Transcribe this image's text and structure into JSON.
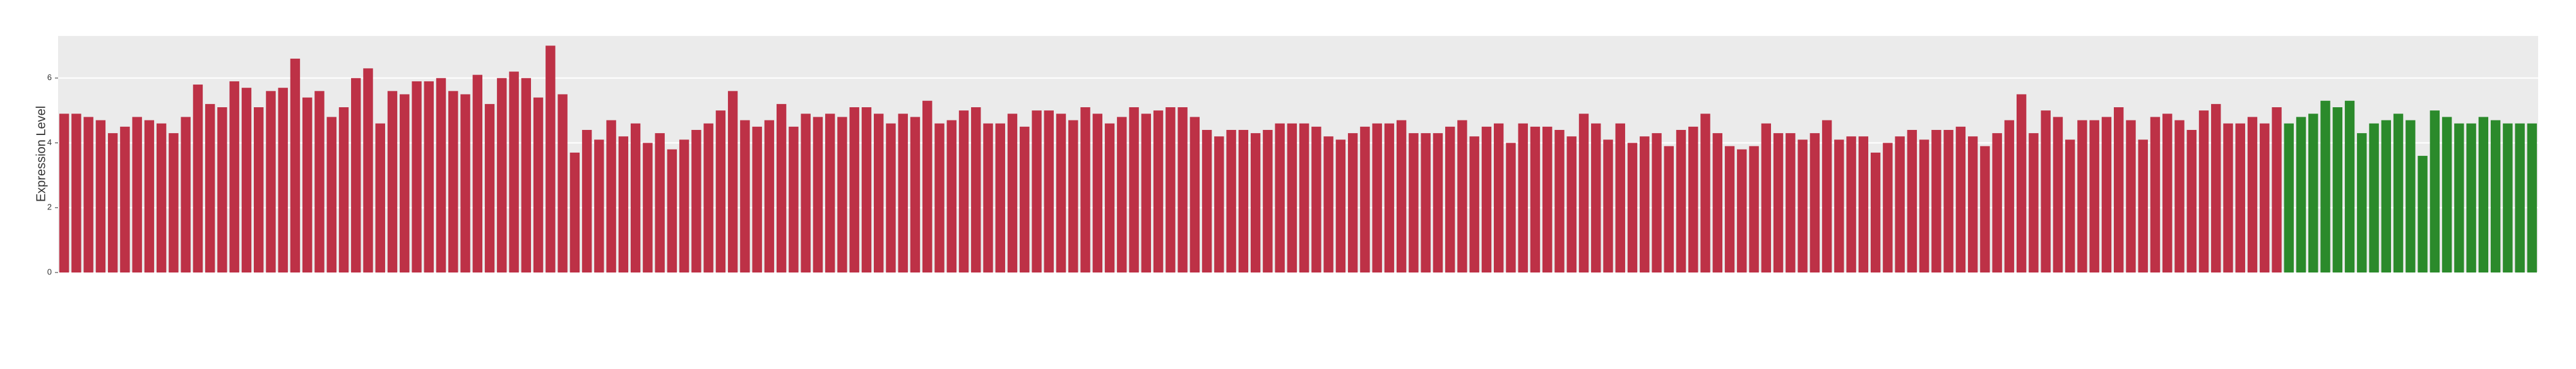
{
  "chart_data": {
    "type": "bar",
    "y_label": "Expression Level",
    "values": [
      4.9,
      4.9,
      4.8,
      4.7,
      4.3,
      4.5,
      4.8,
      4.7,
      4.6,
      4.3,
      4.8,
      5.8,
      5.2,
      5.1,
      5.9,
      5.7,
      5.1,
      5.6,
      5.7,
      6.6,
      5.4,
      5.6,
      4.8,
      5.1,
      6.0,
      6.3,
      4.6,
      5.6,
      5.5,
      5.9,
      5.9,
      6.0,
      5.6,
      5.5,
      6.1,
      5.2,
      6.0,
      6.2,
      6.0,
      5.4,
      7.0,
      5.5,
      3.7,
      4.4,
      4.1,
      4.7,
      4.2,
      4.6,
      4.0,
      4.3,
      3.8,
      4.1,
      4.4,
      4.6,
      5.0,
      5.6,
      4.7,
      4.5,
      4.7,
      5.2,
      4.5,
      4.9,
      4.8,
      4.9,
      4.8,
      5.1,
      5.1,
      4.9,
      4.6,
      4.9,
      4.8,
      5.3,
      4.6,
      4.7,
      5.0,
      5.1,
      4.6,
      4.6,
      4.9,
      4.5,
      5.0,
      5.0,
      4.9,
      4.7,
      5.1,
      4.9,
      4.6,
      4.8,
      5.1,
      4.9,
      5.0,
      5.1,
      5.1,
      4.8,
      4.4,
      4.2,
      4.4,
      4.4,
      4.3,
      4.4,
      4.6,
      4.6,
      4.6,
      4.5,
      4.2,
      4.1,
      4.3,
      4.5,
      4.6,
      4.6,
      4.7,
      4.3,
      4.3,
      4.3,
      4.5,
      4.7,
      4.2,
      4.5,
      4.6,
      4.0,
      4.6,
      4.5,
      4.5,
      4.4,
      4.2,
      4.9,
      4.6,
      4.1,
      4.6,
      4.0,
      4.2,
      4.3,
      3.9,
      4.4,
      4.5,
      4.9,
      4.3,
      3.9,
      3.8,
      3.9,
      4.6,
      4.3,
      4.3,
      4.1,
      4.3,
      4.7,
      4.1,
      4.2,
      4.2,
      3.7,
      4.0,
      4.2,
      4.4,
      4.1,
      4.4,
      4.4,
      4.5,
      4.2,
      3.9,
      4.3,
      4.7,
      5.5,
      4.3,
      5.0,
      4.8,
      4.1,
      4.7,
      4.7,
      4.8,
      5.1,
      4.7,
      4.1,
      4.8,
      4.9,
      4.7,
      4.4,
      5.0,
      5.2,
      4.6,
      4.6,
      4.8,
      4.6,
      5.1,
      4.6,
      4.8,
      4.9,
      5.3,
      5.1,
      5.3,
      4.3,
      4.6,
      4.7,
      4.9,
      4.7,
      3.6,
      5.0,
      4.8,
      4.6,
      4.6,
      4.8,
      4.7,
      4.6,
      4.6,
      4.6
    ],
    "colors": [
      "#bd3146",
      "#bd3146",
      "#bd3146",
      "#bd3146",
      "#bd3146",
      "#bd3146",
      "#bd3146",
      "#bd3146",
      "#bd3146",
      "#bd3146",
      "#bd3146",
      "#bd3146",
      "#bd3146",
      "#bd3146",
      "#bd3146",
      "#bd3146",
      "#bd3146",
      "#bd3146",
      "#bd3146",
      "#bd3146",
      "#bd3146",
      "#bd3146",
      "#bd3146",
      "#bd3146",
      "#bd3146",
      "#bd3146",
      "#bd3146",
      "#bd3146",
      "#bd3146",
      "#bd3146",
      "#bd3146",
      "#bd3146",
      "#bd3146",
      "#bd3146",
      "#bd3146",
      "#bd3146",
      "#bd3146",
      "#bd3146",
      "#bd3146",
      "#bd3146",
      "#bd3146",
      "#bd3146",
      "#bd3146",
      "#bd3146",
      "#bd3146",
      "#bd3146",
      "#bd3146",
      "#bd3146",
      "#bd3146",
      "#bd3146",
      "#bd3146",
      "#bd3146",
      "#bd3146",
      "#bd3146",
      "#bd3146",
      "#bd3146",
      "#bd3146",
      "#bd3146",
      "#bd3146",
      "#bd3146",
      "#bd3146",
      "#bd3146",
      "#bd3146",
      "#bd3146",
      "#bd3146",
      "#bd3146",
      "#bd3146",
      "#bd3146",
      "#bd3146",
      "#bd3146",
      "#bd3146",
      "#bd3146",
      "#bd3146",
      "#bd3146",
      "#bd3146",
      "#bd3146",
      "#bd3146",
      "#bd3146",
      "#bd3146",
      "#bd3146",
      "#bd3146",
      "#bd3146",
      "#bd3146",
      "#bd3146",
      "#bd3146",
      "#bd3146",
      "#bd3146",
      "#bd3146",
      "#bd3146",
      "#bd3146",
      "#bd3146",
      "#bd3146",
      "#bd3146",
      "#bd3146",
      "#bd3146",
      "#bd3146",
      "#bd3146",
      "#bd3146",
      "#bd3146",
      "#bd3146",
      "#bd3146",
      "#bd3146",
      "#bd3146",
      "#bd3146",
      "#bd3146",
      "#bd3146",
      "#bd3146",
      "#bd3146",
      "#bd3146",
      "#bd3146",
      "#bd3146",
      "#bd3146",
      "#bd3146",
      "#bd3146",
      "#bd3146",
      "#bd3146",
      "#bd3146",
      "#bd3146",
      "#bd3146",
      "#bd3146",
      "#bd3146",
      "#bd3146",
      "#bd3146",
      "#bd3146",
      "#bd3146",
      "#bd3146",
      "#bd3146",
      "#bd3146",
      "#bd3146",
      "#bd3146",
      "#bd3146",
      "#bd3146",
      "#bd3146",
      "#bd3146",
      "#bd3146",
      "#bd3146",
      "#bd3146",
      "#bd3146",
      "#bd3146",
      "#bd3146",
      "#bd3146",
      "#bd3146",
      "#bd3146",
      "#bd3146",
      "#bd3146",
      "#bd3146",
      "#bd3146",
      "#bd3146",
      "#bd3146",
      "#bd3146",
      "#bd3146",
      "#bd3146",
      "#bd3146",
      "#bd3146",
      "#bd3146",
      "#bd3146",
      "#bd3146",
      "#bd3146",
      "#bd3146",
      "#bd3146",
      "#bd3146",
      "#bd3146",
      "#bd3146",
      "#bd3146",
      "#bd3146",
      "#bd3146",
      "#bd3146",
      "#bd3146",
      "#bd3146",
      "#bd3146",
      "#bd3146",
      "#bd3146",
      "#bd3146",
      "#bd3146",
      "#bd3146",
      "#bd3146",
      "#bd3146",
      "#bd3146",
      "#bd3146",
      "#bd3146",
      "#bd3146",
      "#bd3146",
      "#bd3146",
      "#2b8a2b",
      "#2b8a2b",
      "#2b8a2b",
      "#2b8a2b",
      "#2b8a2b",
      "#2b8a2b",
      "#2b8a2b",
      "#2b8a2b",
      "#2b8a2b",
      "#2b8a2b",
      "#2b8a2b",
      "#2b8a2b",
      "#2b8a2b",
      "#2b8a2b",
      "#2b8a2b",
      "#2b8a2b",
      "#2b8a2b",
      "#2b8a2b",
      "#2b8a2b",
      "#2b8a2b",
      "#2b8a2b"
    ],
    "ylim": [
      0,
      7.3
    ],
    "yticks": [
      0,
      2,
      4,
      6
    ],
    "grid": true
  }
}
